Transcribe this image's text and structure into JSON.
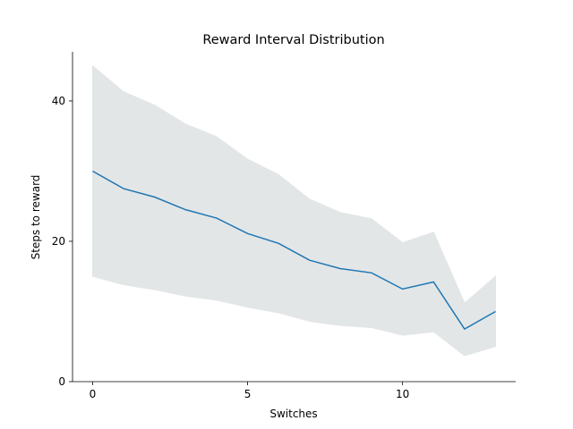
{
  "chart_data": {
    "type": "line",
    "title": "Reward Interval Distribution",
    "xlabel": "Switches",
    "ylabel": "Steps to reward",
    "xlim": [
      -0.65,
      13.65
    ],
    "ylim": [
      0,
      47
    ],
    "x_ticks": [
      0,
      5,
      10
    ],
    "y_ticks": [
      0,
      20,
      40
    ],
    "grid": false,
    "x": [
      0,
      1,
      2,
      3,
      4,
      5,
      6,
      7,
      8,
      9,
      10,
      11,
      12,
      13
    ],
    "series": [
      {
        "values": [
          30.0,
          27.5,
          26.3,
          24.5,
          23.3,
          21.1,
          19.7,
          17.3,
          16.1,
          15.5,
          13.2,
          14.2,
          7.5,
          10.0
        ],
        "lower": [
          15.0,
          13.8,
          13.1,
          12.2,
          11.6,
          10.6,
          9.8,
          8.6,
          8.0,
          7.7,
          6.6,
          7.1,
          3.7,
          5.0
        ],
        "upper": [
          45.0,
          41.3,
          39.4,
          36.7,
          34.9,
          31.7,
          29.5,
          26.0,
          24.1,
          23.2,
          19.8,
          21.3,
          11.2,
          15.0
        ],
        "color": "#1f77b4",
        "band_color": "#e3e6e7"
      }
    ]
  }
}
